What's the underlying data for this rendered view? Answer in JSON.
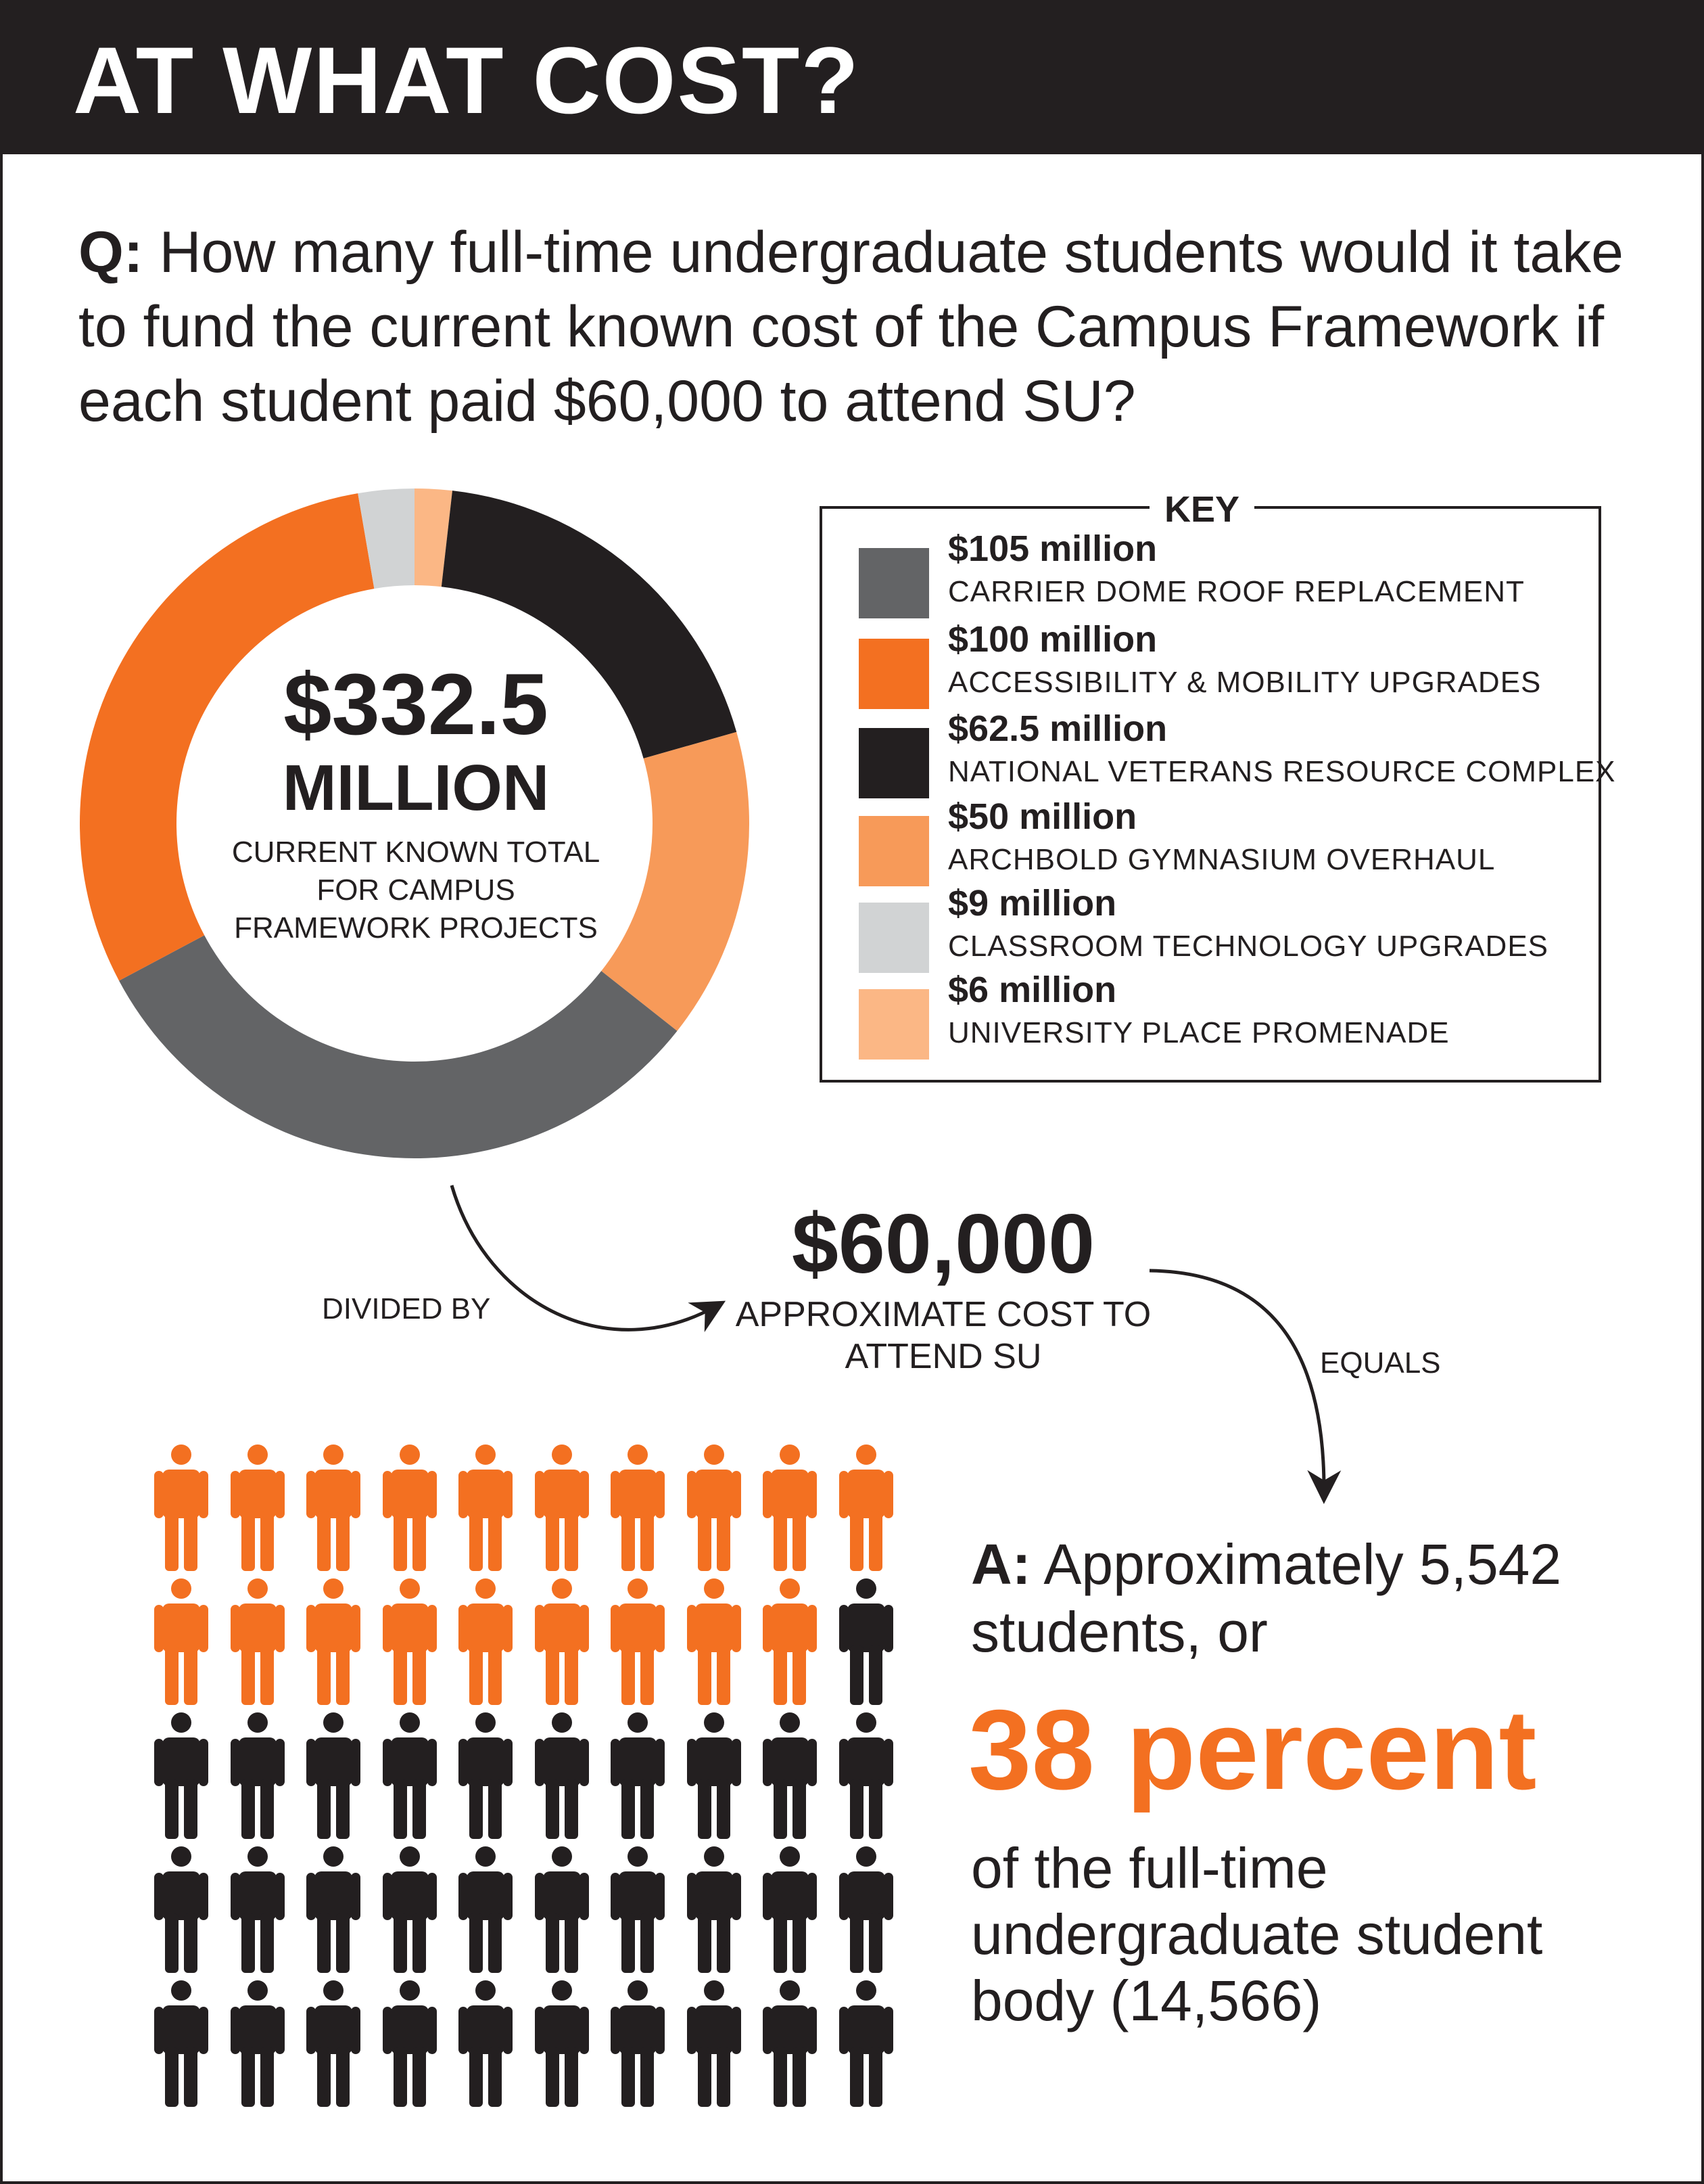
{
  "header": {
    "title": "AT WHAT COST?"
  },
  "question": {
    "prefix": "Q:",
    "text": "How many full-time undergraduate students would it take to fund the current known cost of the Campus Framework if each student paid $60,000 to attend SU?"
  },
  "donut_center": {
    "amount": "$332.5",
    "unit": "MILLION",
    "caption": "CURRENT KNOWN TOTAL FOR CAMPUS FRAMEWORK PROJECTS"
  },
  "key": {
    "title": "KEY",
    "items": [
      {
        "value": "$105 million",
        "label": "CARRIER DOME ROOF REPLACEMENT",
        "color": "#636466"
      },
      {
        "value": "$100 million",
        "label": "ACCESSIBILITY & MOBILITY UPGRADES",
        "color": "#f37021"
      },
      {
        "value": "$62.5 million",
        "label": "NATIONAL VETERANS RESOURCE COMPLEX",
        "color": "#231f20"
      },
      {
        "value": "$50 million",
        "label": "ARCHBOLD GYMNASIUM OVERHAUL",
        "color": "#f79a59"
      },
      {
        "value": "$9 million",
        "label": "CLASSROOM TECHNOLOGY UPGRADES",
        "color": "#d1d3d4"
      },
      {
        "value": "$6 million",
        "label": "UNIVERSITY PLACE PROMENADE",
        "color": "#fbb785"
      }
    ]
  },
  "flow": {
    "divided_by": "DIVIDED BY",
    "equals": "EQUALS",
    "cost_amount": "$60,000",
    "cost_caption": "APPROXIMATE COST TO ATTEND SU"
  },
  "answer": {
    "prefix": "A:",
    "intro": "Approximately 5,542 students, or",
    "percent": "38 percent",
    "rest": "of the full-time undergraduate student body (14,566)"
  },
  "chart_data": [
    {
      "type": "pie",
      "variant": "donut",
      "categories": [
        "CARRIER DOME ROOF REPLACEMENT",
        "ACCESSIBILITY & MOBILITY UPGRADES",
        "NATIONAL VETERANS RESOURCE COMPLEX",
        "ARCHBOLD GYMNASIUM OVERHAUL",
        "CLASSROOM TECHNOLOGY UPGRADES",
        "UNIVERSITY PLACE PROMENADE"
      ],
      "values": [
        105,
        100,
        62.5,
        50,
        9,
        6
      ],
      "units": "million",
      "total": 332.5,
      "colors": [
        "#636466",
        "#f37021",
        "#231f20",
        "#f79a59",
        "#d1d3d4",
        "#fbb785"
      ],
      "legend": "right"
    },
    {
      "type": "pictogram",
      "total_icons": 50,
      "highlighted_icons": 19,
      "highlight_color": "#f37021",
      "base_color": "#231f20",
      "columns": 10
    }
  ]
}
